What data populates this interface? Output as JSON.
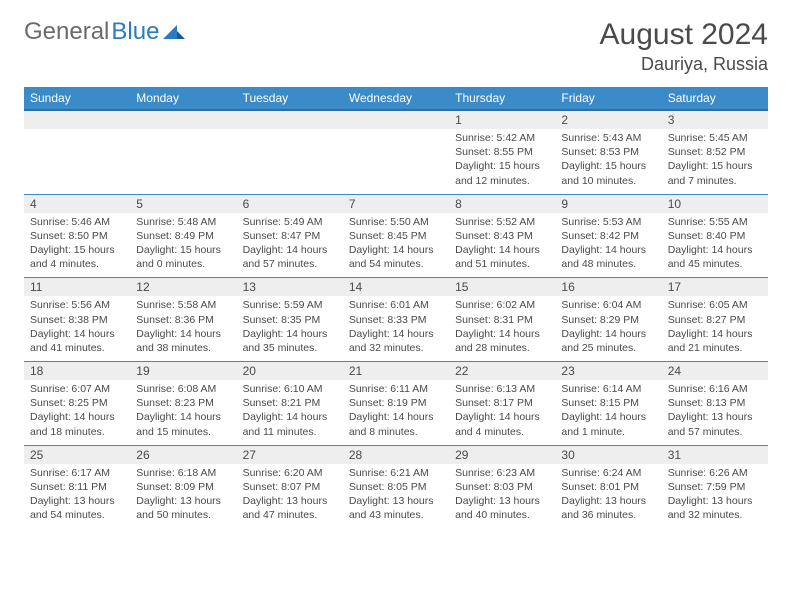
{
  "logo": {
    "text1": "General",
    "text2": "Blue"
  },
  "header": {
    "month": "August 2024",
    "location": "Dauriya, Russia"
  },
  "colors": {
    "header_bg": "#3b8bc9",
    "header_text": "#ffffff",
    "date_bg": "#eeeeee",
    "text": "#4a4a4a",
    "rule": "#3b8bc9",
    "logo_gray": "#6b6b6b",
    "logo_blue": "#2b7bbf"
  },
  "dow": [
    "Sunday",
    "Monday",
    "Tuesday",
    "Wednesday",
    "Thursday",
    "Friday",
    "Saturday"
  ],
  "weeks": [
    [
      {
        "date": "",
        "sunrise": "",
        "sunset": "",
        "daylight": ""
      },
      {
        "date": "",
        "sunrise": "",
        "sunset": "",
        "daylight": ""
      },
      {
        "date": "",
        "sunrise": "",
        "sunset": "",
        "daylight": ""
      },
      {
        "date": "",
        "sunrise": "",
        "sunset": "",
        "daylight": ""
      },
      {
        "date": "1",
        "sunrise": "Sunrise: 5:42 AM",
        "sunset": "Sunset: 8:55 PM",
        "daylight": "Daylight: 15 hours and 12 minutes."
      },
      {
        "date": "2",
        "sunrise": "Sunrise: 5:43 AM",
        "sunset": "Sunset: 8:53 PM",
        "daylight": "Daylight: 15 hours and 10 minutes."
      },
      {
        "date": "3",
        "sunrise": "Sunrise: 5:45 AM",
        "sunset": "Sunset: 8:52 PM",
        "daylight": "Daylight: 15 hours and 7 minutes."
      }
    ],
    [
      {
        "date": "4",
        "sunrise": "Sunrise: 5:46 AM",
        "sunset": "Sunset: 8:50 PM",
        "daylight": "Daylight: 15 hours and 4 minutes."
      },
      {
        "date": "5",
        "sunrise": "Sunrise: 5:48 AM",
        "sunset": "Sunset: 8:49 PM",
        "daylight": "Daylight: 15 hours and 0 minutes."
      },
      {
        "date": "6",
        "sunrise": "Sunrise: 5:49 AM",
        "sunset": "Sunset: 8:47 PM",
        "daylight": "Daylight: 14 hours and 57 minutes."
      },
      {
        "date": "7",
        "sunrise": "Sunrise: 5:50 AM",
        "sunset": "Sunset: 8:45 PM",
        "daylight": "Daylight: 14 hours and 54 minutes."
      },
      {
        "date": "8",
        "sunrise": "Sunrise: 5:52 AM",
        "sunset": "Sunset: 8:43 PM",
        "daylight": "Daylight: 14 hours and 51 minutes."
      },
      {
        "date": "9",
        "sunrise": "Sunrise: 5:53 AM",
        "sunset": "Sunset: 8:42 PM",
        "daylight": "Daylight: 14 hours and 48 minutes."
      },
      {
        "date": "10",
        "sunrise": "Sunrise: 5:55 AM",
        "sunset": "Sunset: 8:40 PM",
        "daylight": "Daylight: 14 hours and 45 minutes."
      }
    ],
    [
      {
        "date": "11",
        "sunrise": "Sunrise: 5:56 AM",
        "sunset": "Sunset: 8:38 PM",
        "daylight": "Daylight: 14 hours and 41 minutes."
      },
      {
        "date": "12",
        "sunrise": "Sunrise: 5:58 AM",
        "sunset": "Sunset: 8:36 PM",
        "daylight": "Daylight: 14 hours and 38 minutes."
      },
      {
        "date": "13",
        "sunrise": "Sunrise: 5:59 AM",
        "sunset": "Sunset: 8:35 PM",
        "daylight": "Daylight: 14 hours and 35 minutes."
      },
      {
        "date": "14",
        "sunrise": "Sunrise: 6:01 AM",
        "sunset": "Sunset: 8:33 PM",
        "daylight": "Daylight: 14 hours and 32 minutes."
      },
      {
        "date": "15",
        "sunrise": "Sunrise: 6:02 AM",
        "sunset": "Sunset: 8:31 PM",
        "daylight": "Daylight: 14 hours and 28 minutes."
      },
      {
        "date": "16",
        "sunrise": "Sunrise: 6:04 AM",
        "sunset": "Sunset: 8:29 PM",
        "daylight": "Daylight: 14 hours and 25 minutes."
      },
      {
        "date": "17",
        "sunrise": "Sunrise: 6:05 AM",
        "sunset": "Sunset: 8:27 PM",
        "daylight": "Daylight: 14 hours and 21 minutes."
      }
    ],
    [
      {
        "date": "18",
        "sunrise": "Sunrise: 6:07 AM",
        "sunset": "Sunset: 8:25 PM",
        "daylight": "Daylight: 14 hours and 18 minutes."
      },
      {
        "date": "19",
        "sunrise": "Sunrise: 6:08 AM",
        "sunset": "Sunset: 8:23 PM",
        "daylight": "Daylight: 14 hours and 15 minutes."
      },
      {
        "date": "20",
        "sunrise": "Sunrise: 6:10 AM",
        "sunset": "Sunset: 8:21 PM",
        "daylight": "Daylight: 14 hours and 11 minutes."
      },
      {
        "date": "21",
        "sunrise": "Sunrise: 6:11 AM",
        "sunset": "Sunset: 8:19 PM",
        "daylight": "Daylight: 14 hours and 8 minutes."
      },
      {
        "date": "22",
        "sunrise": "Sunrise: 6:13 AM",
        "sunset": "Sunset: 8:17 PM",
        "daylight": "Daylight: 14 hours and 4 minutes."
      },
      {
        "date": "23",
        "sunrise": "Sunrise: 6:14 AM",
        "sunset": "Sunset: 8:15 PM",
        "daylight": "Daylight: 14 hours and 1 minute."
      },
      {
        "date": "24",
        "sunrise": "Sunrise: 6:16 AM",
        "sunset": "Sunset: 8:13 PM",
        "daylight": "Daylight: 13 hours and 57 minutes."
      }
    ],
    [
      {
        "date": "25",
        "sunrise": "Sunrise: 6:17 AM",
        "sunset": "Sunset: 8:11 PM",
        "daylight": "Daylight: 13 hours and 54 minutes."
      },
      {
        "date": "26",
        "sunrise": "Sunrise: 6:18 AM",
        "sunset": "Sunset: 8:09 PM",
        "daylight": "Daylight: 13 hours and 50 minutes."
      },
      {
        "date": "27",
        "sunrise": "Sunrise: 6:20 AM",
        "sunset": "Sunset: 8:07 PM",
        "daylight": "Daylight: 13 hours and 47 minutes."
      },
      {
        "date": "28",
        "sunrise": "Sunrise: 6:21 AM",
        "sunset": "Sunset: 8:05 PM",
        "daylight": "Daylight: 13 hours and 43 minutes."
      },
      {
        "date": "29",
        "sunrise": "Sunrise: 6:23 AM",
        "sunset": "Sunset: 8:03 PM",
        "daylight": "Daylight: 13 hours and 40 minutes."
      },
      {
        "date": "30",
        "sunrise": "Sunrise: 6:24 AM",
        "sunset": "Sunset: 8:01 PM",
        "daylight": "Daylight: 13 hours and 36 minutes."
      },
      {
        "date": "31",
        "sunrise": "Sunrise: 6:26 AM",
        "sunset": "Sunset: 7:59 PM",
        "daylight": "Daylight: 13 hours and 32 minutes."
      }
    ]
  ]
}
